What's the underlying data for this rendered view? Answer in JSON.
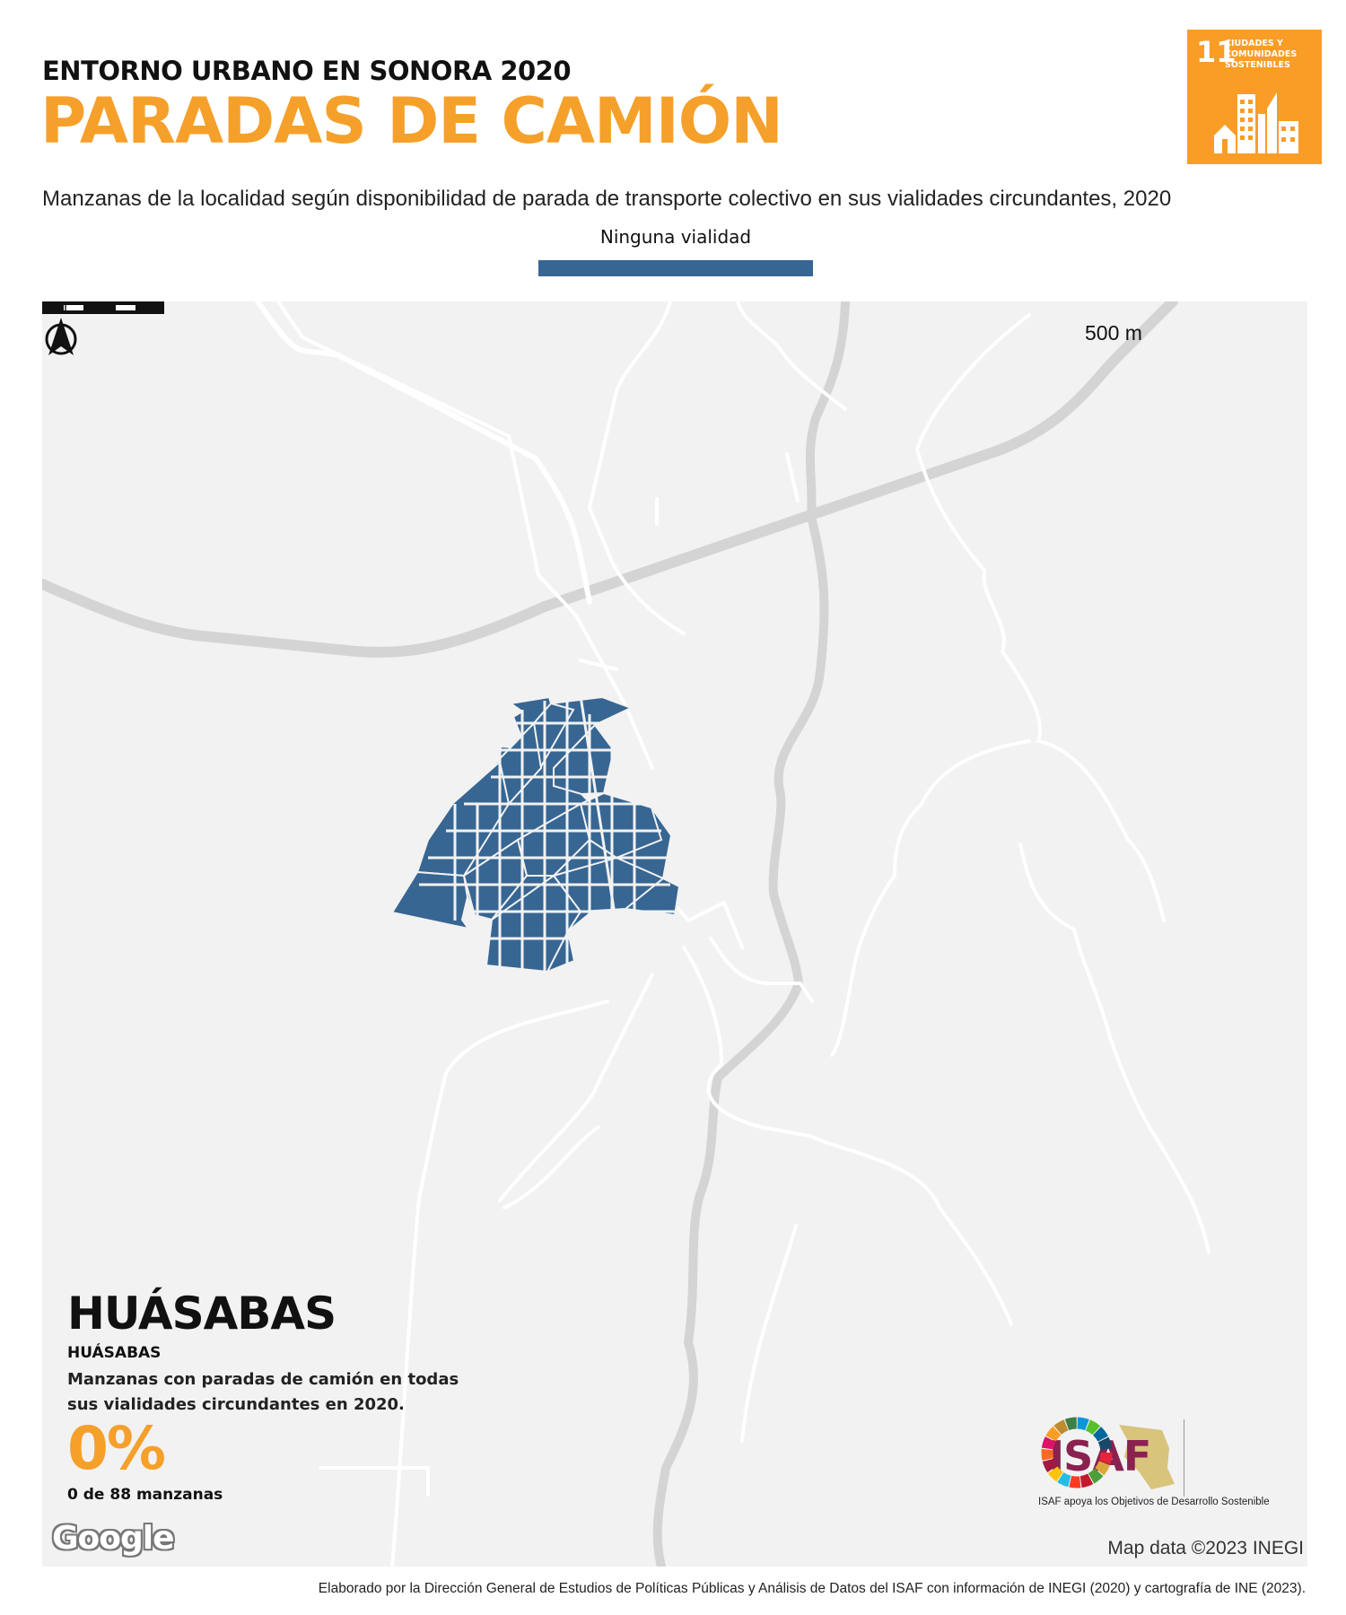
{
  "header": {
    "supertitle": "ENTORNO URBANO EN SONORA 2020",
    "title": "PARADAS DE CAMIÓN",
    "subtitle": "Manzanas de la localidad según disponibilidad de parada de transporte colectivo en sus vialidades circundantes, 2020"
  },
  "legend": {
    "label": "Ninguna vialidad",
    "color": "#376693"
  },
  "sdg_badge": {
    "number": "11",
    "text": "CIUDADES Y COMUNIDADES SOSTENIBLES",
    "color": "#f99d26"
  },
  "map": {
    "scale_label": "500 m",
    "north_label": "N",
    "background": "#f2f2f2",
    "attribution_logo": "Google",
    "attribution": "Map data ©2023 INEGI"
  },
  "stats": {
    "locality": "HUÁSABAS",
    "municipality": "HUÁSABAS",
    "description": "Manzanas con paradas de camión en todas sus vialidades circundantes en 2020.",
    "percentage": "0%",
    "count": "0 de 88 manzanas"
  },
  "logos": {
    "isaf": "ISAF",
    "caption": "ISAF apoya los Objetivos de Desarrollo Sostenible"
  },
  "footer": "Elaborado por la Dirección General de Estudios de Políticas Públicas y Análisis de Datos del ISAF con información de INEGI (2020) y cartografía de INE (2023)."
}
